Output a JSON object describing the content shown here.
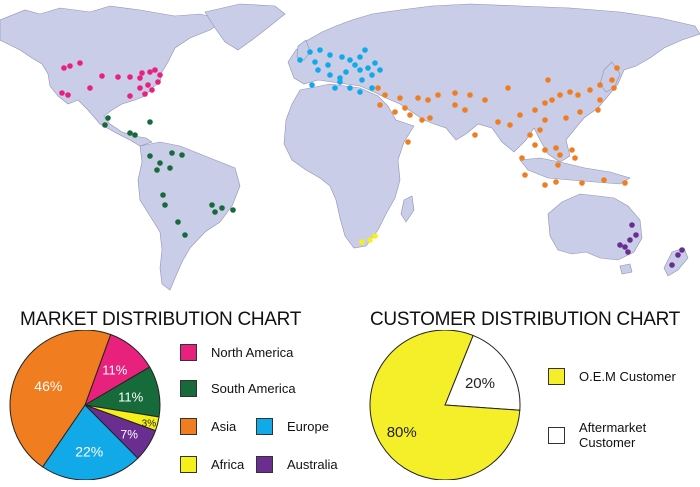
{
  "map": {
    "land_color": "#c9cde8",
    "border_color": "#8e93b8",
    "ocean_color": "#ffffff"
  },
  "charts": {
    "market_title": "MARKET DISTRIBUTION CHART",
    "customer_title": "CUSTOMER DISTRIBUTION CHART"
  },
  "chart_data": [
    {
      "type": "pie",
      "title": "MARKET DISTRIBUTION CHART",
      "categories": [
        "North America",
        "South America",
        "Asia",
        "Europe",
        "Africa",
        "Australia"
      ],
      "values": [
        11,
        11,
        46,
        22,
        3,
        7
      ],
      "labels": [
        "11%",
        "11%",
        "46%",
        "22%",
        "3%",
        "7%"
      ],
      "slice_order": [
        "North America",
        "South America",
        "Africa",
        "Australia",
        "Europe",
        "Asia"
      ],
      "colors": {
        "North America": "#e8217d",
        "South America": "#176b3a",
        "Asia": "#f07d1f",
        "Europe": "#12a9e8",
        "Africa": "#f5ef1a",
        "Australia": "#6a2d90"
      },
      "legend": [
        {
          "label": "North America",
          "color": "#e8217d"
        },
        {
          "label": "South America",
          "color": "#176b3a"
        },
        {
          "label": "Asia",
          "color": "#f07d1f"
        },
        {
          "label": "Europe",
          "color": "#12a9e8"
        },
        {
          "label": "Africa",
          "color": "#f5ef1a"
        },
        {
          "label": "Australia",
          "color": "#6a2d90"
        }
      ]
    },
    {
      "type": "pie",
      "title": "CUSTOMER DISTRIBUTION CHART",
      "categories": [
        "O.E.M Customer",
        "Aftermarket Customer"
      ],
      "values": [
        80,
        20
      ],
      "labels": [
        "80%",
        "20%"
      ],
      "colors": {
        "O.E.M Customer": "#f5ef2a",
        "Aftermarket Customer": "#ffffff"
      },
      "legend": [
        {
          "label": "O.E.M Customer",
          "color": "#f5ef2a"
        },
        {
          "label": "Aftermarket\nCustomer",
          "color": "#ffffff"
        }
      ]
    }
  ],
  "map_markers": {
    "north_america": {
      "color": "#e8217d",
      "points": [
        [
          64,
          68
        ],
        [
          70,
          66
        ],
        [
          80,
          63
        ],
        [
          90,
          88
        ],
        [
          62,
          93
        ],
        [
          68,
          95
        ],
        [
          102,
          76
        ],
        [
          118,
          77
        ],
        [
          130,
          77
        ],
        [
          140,
          78
        ],
        [
          142,
          73
        ],
        [
          150,
          72
        ],
        [
          155,
          70
        ],
        [
          160,
          75
        ],
        [
          158,
          82
        ],
        [
          148,
          85
        ],
        [
          140,
          88
        ],
        [
          152,
          90
        ],
        [
          145,
          94
        ],
        [
          130,
          96
        ]
      ]
    },
    "south_america": {
      "color": "#176b3a",
      "points": [
        [
          108,
          118
        ],
        [
          105,
          125
        ],
        [
          130,
          133
        ],
        [
          135,
          135
        ],
        [
          150,
          122
        ],
        [
          150,
          156
        ],
        [
          160,
          163
        ],
        [
          172,
          153
        ],
        [
          182,
          155
        ],
        [
          170,
          168
        ],
        [
          157,
          170
        ],
        [
          163,
          195
        ],
        [
          165,
          205
        ],
        [
          178,
          222
        ],
        [
          185,
          235
        ],
        [
          212,
          205
        ],
        [
          222,
          208
        ],
        [
          215,
          212
        ],
        [
          233,
          210
        ]
      ]
    },
    "europe": {
      "color": "#12a9e8",
      "points": [
        [
          310,
          52
        ],
        [
          320,
          50
        ],
        [
          330,
          55
        ],
        [
          300,
          60
        ],
        [
          315,
          62
        ],
        [
          318,
          70
        ],
        [
          328,
          65
        ],
        [
          342,
          57
        ],
        [
          350,
          60
        ],
        [
          360,
          57
        ],
        [
          365,
          50
        ],
        [
          355,
          65
        ],
        [
          360,
          70
        ],
        [
          368,
          68
        ],
        [
          346,
          72
        ],
        [
          340,
          78
        ],
        [
          330,
          75
        ],
        [
          312,
          85
        ],
        [
          335,
          88
        ],
        [
          340,
          82
        ],
        [
          350,
          88
        ],
        [
          360,
          92
        ],
        [
          372,
          75
        ],
        [
          375,
          63
        ],
        [
          380,
          70
        ],
        [
          372,
          88
        ],
        [
          362,
          80
        ]
      ]
    },
    "asia": {
      "color": "#f07d1f",
      "points": [
        [
          378,
          88
        ],
        [
          385,
          95
        ],
        [
          400,
          98
        ],
        [
          405,
          108
        ],
        [
          418,
          98
        ],
        [
          428,
          100
        ],
        [
          438,
          95
        ],
        [
          455,
          93
        ],
        [
          470,
          95
        ],
        [
          485,
          100
        ],
        [
          465,
          110
        ],
        [
          455,
          105
        ],
        [
          380,
          105
        ],
        [
          395,
          112
        ],
        [
          410,
          115
        ],
        [
          422,
          120
        ],
        [
          430,
          118
        ],
        [
          408,
          142
        ],
        [
          475,
          135
        ],
        [
          498,
          122
        ],
        [
          510,
          125
        ],
        [
          520,
          115
        ],
        [
          535,
          110
        ],
        [
          545,
          103
        ],
        [
          552,
          100
        ],
        [
          560,
          95
        ],
        [
          570,
          92
        ],
        [
          578,
          95
        ],
        [
          590,
          90
        ],
        [
          600,
          85
        ],
        [
          612,
          80
        ],
        [
          617,
          68
        ],
        [
          614,
          88
        ],
        [
          600,
          100
        ],
        [
          598,
          110
        ],
        [
          580,
          112
        ],
        [
          566,
          118
        ],
        [
          545,
          120
        ],
        [
          540,
          130
        ],
        [
          530,
          135
        ],
        [
          535,
          145
        ],
        [
          545,
          150
        ],
        [
          556,
          148
        ],
        [
          560,
          155
        ],
        [
          572,
          150
        ],
        [
          575,
          158
        ],
        [
          558,
          165
        ],
        [
          522,
          158
        ],
        [
          525,
          175
        ],
        [
          545,
          185
        ],
        [
          556,
          182
        ],
        [
          582,
          183
        ],
        [
          604,
          180
        ],
        [
          625,
          183
        ],
        [
          548,
          80
        ],
        [
          508,
          88
        ]
      ]
    },
    "africa": {
      "color": "#f5ef1a",
      "points": [
        [
          362,
          242
        ],
        [
          370,
          240
        ],
        [
          375,
          236
        ]
      ]
    },
    "australia": {
      "color": "#6a2d90",
      "points": [
        [
          632,
          225
        ],
        [
          636,
          235
        ],
        [
          630,
          240
        ],
        [
          625,
          247
        ],
        [
          628,
          252
        ],
        [
          620,
          245
        ],
        [
          672,
          265
        ],
        [
          678,
          255
        ],
        [
          682,
          250
        ]
      ]
    }
  }
}
